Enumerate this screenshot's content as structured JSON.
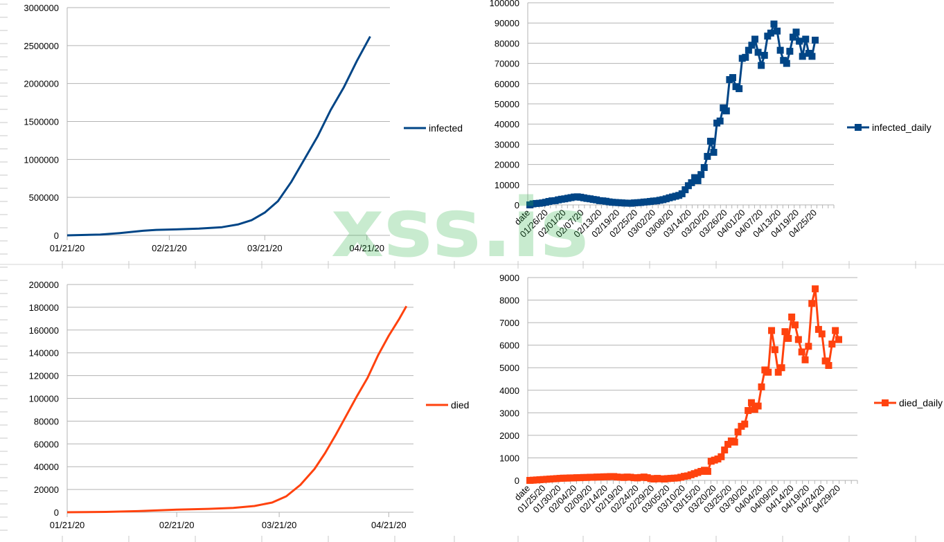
{
  "colors": {
    "blue": "#004586",
    "red": "#ff420e",
    "grid": "#b3b3b3",
    "axis": "#b3b3b3",
    "watermark": "#2fb34a"
  },
  "watermark": {
    "text": "xss.is"
  },
  "chart_data": [
    {
      "id": "infected",
      "type": "line",
      "title": "",
      "xlabel": "",
      "ylabel": "",
      "ylim": [
        0,
        3000000
      ],
      "yticks": [
        0,
        500000,
        1000000,
        1500000,
        2000000,
        2500000,
        3000000
      ],
      "xaxis": "date",
      "xlim": [
        "01/21/20",
        "04/28/20"
      ],
      "xtick_labels": [
        "01/21/20",
        "02/21/20",
        "03/21/20",
        "04/21/20"
      ],
      "grid": true,
      "legend": "right",
      "series": [
        {
          "name": "infected",
          "color": "#004586",
          "markers": false,
          "points": [
            [
              "01/21/20",
              0
            ],
            [
              "01/31/20",
              10000
            ],
            [
              "02/06/20",
              30000
            ],
            [
              "02/13/20",
              60000
            ],
            [
              "02/17/20",
              72000
            ],
            [
              "02/23/20",
              78000
            ],
            [
              "03/01/20",
              88000
            ],
            [
              "03/08/20",
              108000
            ],
            [
              "03/13/20",
              145000
            ],
            [
              "03/17/20",
              200000
            ],
            [
              "03/21/20",
              300000
            ],
            [
              "03/25/20",
              450000
            ],
            [
              "03/29/20",
              700000
            ],
            [
              "04/02/20",
              1000000
            ],
            [
              "04/06/20",
              1300000
            ],
            [
              "04/10/20",
              1650000
            ],
            [
              "04/14/20",
              1950000
            ],
            [
              "04/18/20",
              2300000
            ],
            [
              "04/22/20",
              2620000
            ]
          ]
        }
      ]
    },
    {
      "id": "infected_daily",
      "type": "line",
      "title": "",
      "xlabel": "",
      "ylabel": "",
      "ylim": [
        0,
        100000
      ],
      "yticks": [
        0,
        10000,
        20000,
        30000,
        40000,
        50000,
        60000,
        70000,
        80000,
        90000,
        100000
      ],
      "xaxis": "category",
      "xtick_labels": [
        "date",
        "01/26/20",
        "02/01/20",
        "02/07/20",
        "02/13/20",
        "02/19/20",
        "02/25/20",
        "03/02/20",
        "03/08/20",
        "03/14/20",
        "03/20/20",
        "03/26/20",
        "04/01/20",
        "04/07/20",
        "04/13/20",
        "04/19/20",
        "04/25/20"
      ],
      "grid": true,
      "legend": "right",
      "series": [
        {
          "name": "infected_daily",
          "color": "#004586",
          "markers": true,
          "values": [
            0,
            500,
            700,
            800,
            1000,
            1300,
            1700,
            2000,
            2100,
            2500,
            2800,
            3000,
            3300,
            3600,
            3900,
            4000,
            3800,
            3500,
            3200,
            3000,
            2700,
            2500,
            2100,
            2000,
            1800,
            1500,
            1300,
            1200,
            1100,
            1000,
            900,
            850,
            800,
            1000,
            1100,
            1200,
            1400,
            1500,
            1700,
            1900,
            2000,
            2300,
            2600,
            3000,
            3500,
            3900,
            4300,
            4700,
            5500,
            7500,
            9500,
            11000,
            13500,
            12000,
            15000,
            18500,
            24000,
            31500,
            26000,
            40500,
            41500,
            48000,
            46500,
            62000,
            63000,
            58500,
            57500,
            72500,
            73000,
            76500,
            79000,
            82000,
            75500,
            69000,
            74000,
            83500,
            85000,
            89500,
            86000,
            76500,
            71500,
            70000,
            76000,
            83000,
            85500,
            81000,
            73500,
            82000,
            75000,
            73500,
            81500
          ]
        }
      ]
    },
    {
      "id": "died",
      "type": "line",
      "title": "",
      "xlabel": "",
      "ylabel": "",
      "ylim": [
        0,
        200000
      ],
      "yticks": [
        0,
        20000,
        40000,
        60000,
        80000,
        100000,
        120000,
        140000,
        160000,
        180000,
        200000
      ],
      "xaxis": "date",
      "xlim": [
        "01/21/20",
        "04/28/20"
      ],
      "xtick_labels": [
        "01/21/20",
        "02/21/20",
        "03/21/20",
        "04/21/20"
      ],
      "grid": true,
      "legend": "right",
      "series": [
        {
          "name": "died",
          "color": "#ff420e",
          "markers": false,
          "points": [
            [
              "01/21/20",
              0
            ],
            [
              "02/01/20",
              300
            ],
            [
              "02/10/20",
              1000
            ],
            [
              "02/21/20",
              2300
            ],
            [
              "03/01/20",
              3000
            ],
            [
              "03/08/20",
              3800
            ],
            [
              "03/14/20",
              5500
            ],
            [
              "03/19/20",
              8500
            ],
            [
              "03/23/20",
              14000
            ],
            [
              "03/27/20",
              24000
            ],
            [
              "03/31/20",
              38000
            ],
            [
              "04/03/20",
              52000
            ],
            [
              "04/06/20",
              68000
            ],
            [
              "04/09/20",
              85000
            ],
            [
              "04/12/20",
              102000
            ],
            [
              "04/15/20",
              118000
            ],
            [
              "04/18/20",
              138000
            ],
            [
              "04/21/20",
              155000
            ],
            [
              "04/24/20",
              170000
            ],
            [
              "04/26/20",
              181000
            ]
          ]
        }
      ]
    },
    {
      "id": "died_daily",
      "type": "line",
      "title": "",
      "xlabel": "",
      "ylabel": "",
      "ylim": [
        0,
        9000
      ],
      "yticks": [
        0,
        1000,
        2000,
        3000,
        4000,
        5000,
        6000,
        7000,
        8000,
        9000
      ],
      "xaxis": "category",
      "xtick_labels": [
        "date",
        "01/25/20",
        "01/30/20",
        "02/04/20",
        "02/09/20",
        "02/14/20",
        "02/19/20",
        "02/24/20",
        "02/29/20",
        "03/05/20",
        "03/10/20",
        "03/15/20",
        "03/20/20",
        "03/25/20",
        "03/30/20",
        "04/04/20",
        "04/09/20",
        "04/14/20",
        "04/19/20",
        "04/24/20",
        "04/29/20"
      ],
      "grid": true,
      "legend": "right",
      "series": [
        {
          "name": "died_daily",
          "color": "#ff420e",
          "markers": true,
          "values": [
            0,
            10,
            20,
            30,
            40,
            50,
            60,
            70,
            80,
            90,
            100,
            100,
            110,
            110,
            120,
            120,
            130,
            130,
            140,
            140,
            150,
            150,
            160,
            160,
            170,
            170,
            150,
            140,
            130,
            150,
            140,
            120,
            110,
            130,
            150,
            120,
            80,
            60,
            90,
            70,
            60,
            80,
            90,
            100,
            110,
            140,
            180,
            200,
            250,
            300,
            350,
            400,
            450,
            400,
            850,
            900,
            950,
            1050,
            1350,
            1600,
            1750,
            1700,
            2150,
            2400,
            2500,
            3100,
            3450,
            3150,
            3300,
            4150,
            4900,
            4800,
            6650,
            5800,
            4800,
            5000,
            6600,
            6300,
            7250,
            6900,
            6250,
            5700,
            5350,
            5950,
            7850,
            8500,
            6700,
            6500,
            5300,
            5100,
            6050,
            6650,
            6250
          ]
        }
      ]
    }
  ]
}
